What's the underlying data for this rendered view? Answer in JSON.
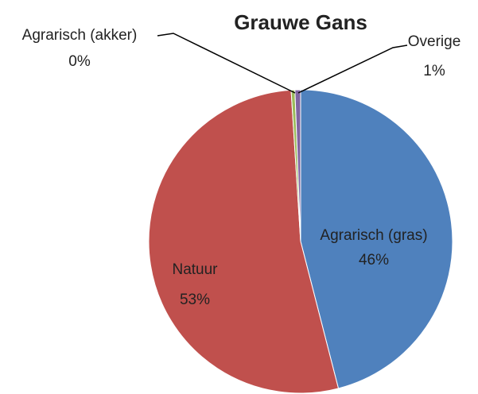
{
  "chart_data": {
    "type": "pie",
    "title": "Grauwe Gans",
    "categories": [
      "Agrarisch (gras)",
      "Natuur",
      "Agrarisch (akker)",
      "Overige"
    ],
    "values": [
      46,
      53,
      0.4,
      0.6
    ],
    "value_labels": [
      "46%",
      "53%",
      "0%",
      "1%"
    ],
    "colors": [
      "#4f81bd",
      "#c0504d",
      "#9bbb59",
      "#8064a2"
    ]
  }
}
